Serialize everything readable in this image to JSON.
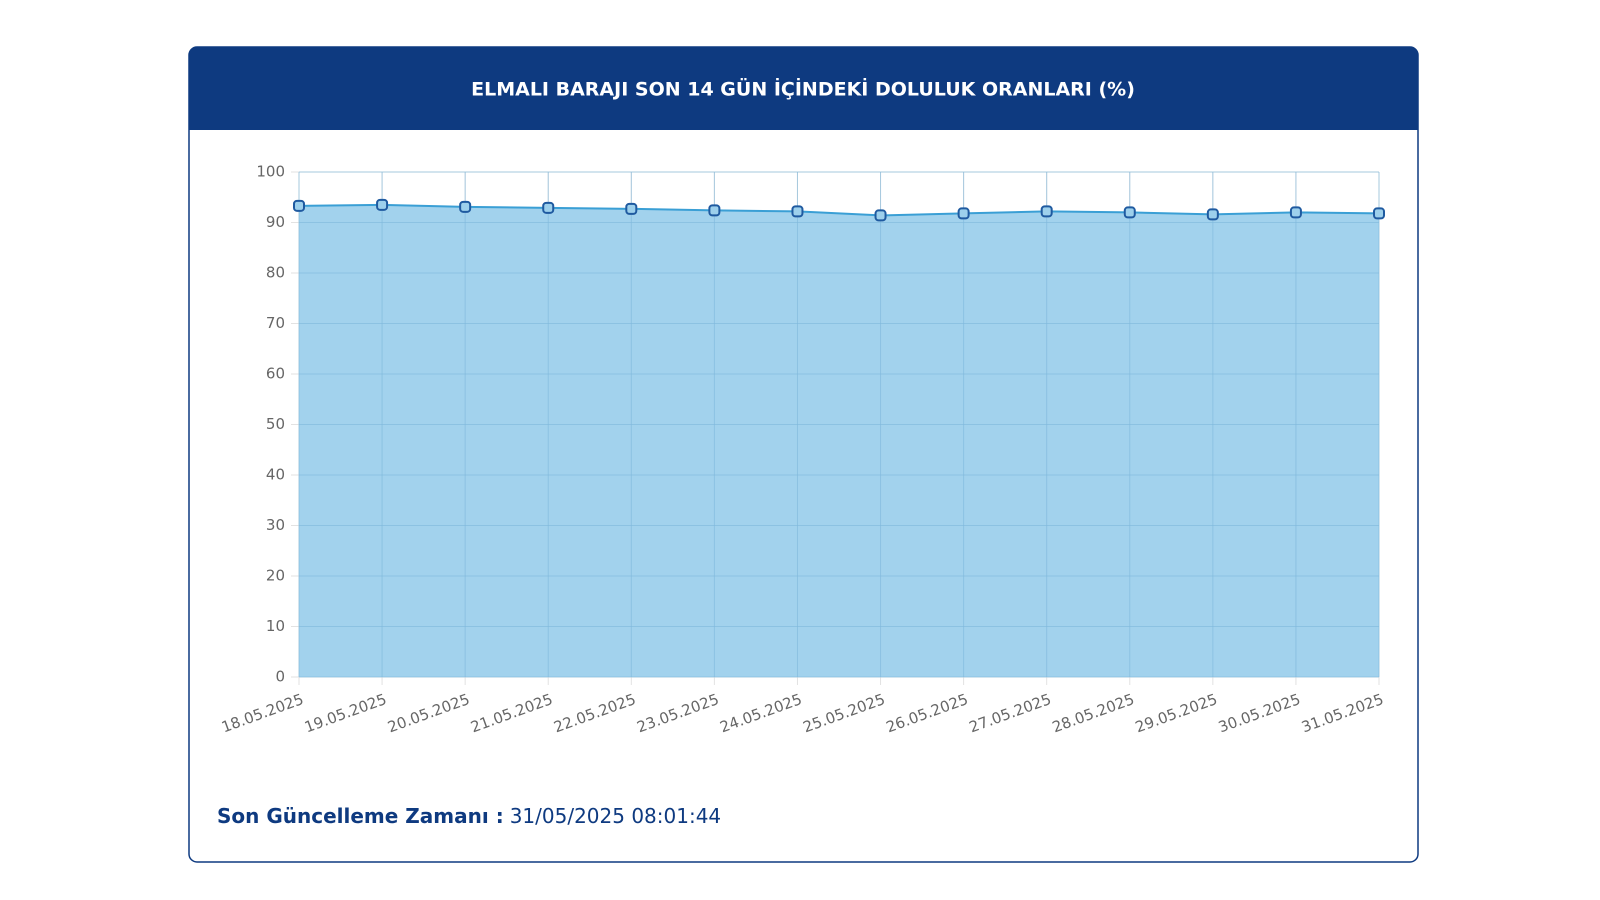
{
  "chart_data": {
    "type": "area",
    "title": "ELMALI BARAJI SON 14 GÜN İÇİNDEKİ DOLULUK ORANLARI (%)",
    "categories": [
      "18.05.2025",
      "19.05.2025",
      "20.05.2025",
      "21.05.2025",
      "22.05.2025",
      "23.05.2025",
      "24.05.2025",
      "25.05.2025",
      "26.05.2025",
      "27.05.2025",
      "28.05.2025",
      "29.05.2025",
      "30.05.2025",
      "31.05.2025"
    ],
    "values": [
      93.3,
      93.5,
      93.1,
      92.9,
      92.7,
      92.4,
      92.2,
      91.4,
      91.8,
      92.2,
      92.0,
      91.6,
      92.0,
      91.8
    ],
    "color": "#3a9fd5",
    "fill": "#9dd0ec",
    "marker_color": "#1f5aa0",
    "ylim": [
      0,
      100
    ],
    "yticks": [
      0,
      10,
      20,
      30,
      40,
      50,
      60,
      70,
      80,
      90,
      100
    ],
    "grid": true
  },
  "footer": {
    "label": "Son Güncelleme Zamanı :",
    "value": "31/05/2025 08:01:44"
  }
}
